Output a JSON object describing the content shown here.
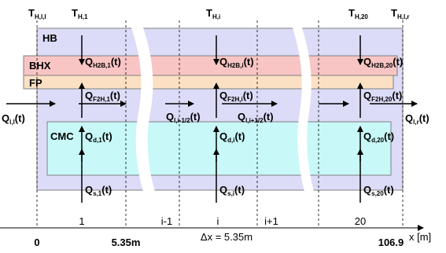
{
  "temps": {
    "thl_main": "T",
    "thl_sub": "H,l,l",
    "th1_main": "T",
    "th1_sub": "H,1",
    "thi_main": "T",
    "thi_sub": "H,i",
    "th20_main": "T",
    "th20_sub": "H,20",
    "thlr_main": "T",
    "thlr_sub": "H,l,r"
  },
  "layers": {
    "hb": "HB",
    "bhx": "BHX",
    "fp": "FP",
    "cmc": "CMC"
  },
  "flows": {
    "qh2b1_main": "Q",
    "qh2b1_sub": "H2B,1",
    "qh2b1_t": "(t)",
    "qh2bi_main": "Q",
    "qh2bi_sub": "H2B,i",
    "qh2bi_t": "(t)",
    "qh2b20_main": "Q",
    "qh2b20_sub": "H2B,20",
    "qh2b20_t": "(t)",
    "qf2h1_main": "Q",
    "qf2h1_sub": "F2H,1",
    "qf2h1_t": "(t)",
    "qf2hi_main": "Q",
    "qf2hi_sub": "F2H,i",
    "qf2hi_t": "(t)",
    "qf2h20_main": "Q",
    "qf2h20_sub": "F2H,20",
    "qf2h20_t": "(t)",
    "qll_main": "Q",
    "qll_sub": "l,l",
    "qll_t": "(t)",
    "qlr_main": "Q",
    "qlr_sub": "l,r",
    "qlr_t": "(t)",
    "qlim_main": "Q",
    "qlim_sub": "l,i-1/2",
    "qlim_t": "(t)",
    "qlip_main": "Q",
    "qlip_sub": "l,i+1/2",
    "qlip_t": "(t)",
    "qd1_main": "Q",
    "qd1_sub": "d,1",
    "qd1_t": "(t)",
    "qdi_main": "Q",
    "qdi_sub": "d,i",
    "qdi_t": "(t)",
    "qd20_main": "Q",
    "qd20_sub": "d,20",
    "qd20_t": "(t)",
    "qs1_main": "Q",
    "qs1_sub": "s,1",
    "qs1_t": "(t)",
    "qsi_main": "Q",
    "qsi_sub": "s,i",
    "qsi_t": "(t)",
    "qs20_main": "Q",
    "qs20_sub": "s,20",
    "qs20_t": "(t)"
  },
  "cells": {
    "c1": "1",
    "cim1": "i-1",
    "ci": "i",
    "cip1": "i+1",
    "c20": "20"
  },
  "axis": {
    "zero": "0",
    "x535": "5.35m",
    "dx": "Δx = 5.35m",
    "x1069": "106.9",
    "xlabel": "x  [m]"
  },
  "colors": {
    "hb_fill": "#dcdcf8",
    "bhx_fill": "#f8c4c4",
    "fp_fill": "#fce0c4",
    "cmc_fill": "#c8f8f8",
    "outline": "#7f7f7f"
  }
}
